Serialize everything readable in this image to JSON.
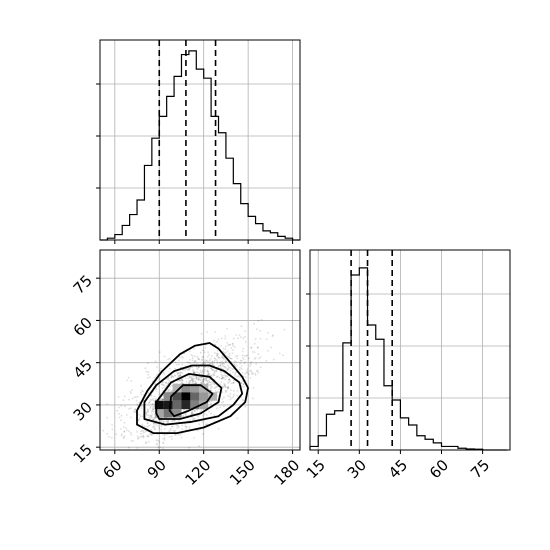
{
  "chart_data": {
    "type": "corner",
    "grid": true,
    "panels": [
      {
        "id": "hist_x",
        "type": "histogram",
        "orientation": "top-left",
        "xlim": [
          50,
          185
        ],
        "bin_edges": [
          50,
          55,
          60,
          65,
          70,
          75,
          80,
          85,
          90,
          95,
          100,
          105,
          110,
          115,
          120,
          125,
          130,
          135,
          140,
          145,
          150,
          155,
          160,
          165,
          170,
          175,
          180,
          185
        ],
        "counts": [
          0,
          1,
          3,
          8,
          14,
          22,
          41,
          56,
          68,
          79,
          90,
          102,
          104,
          94,
          89,
          68,
          59,
          45,
          31,
          20,
          13,
          9,
          5,
          4,
          2,
          1,
          0
        ],
        "quantile_lines": [
          90,
          108,
          128
        ],
        "ylim": [
          0,
          110
        ]
      },
      {
        "id": "hist_y",
        "type": "histogram",
        "orientation": "bottom-right",
        "xlim": [
          12,
          85
        ],
        "bin_edges": [
          12,
          15,
          18,
          21,
          24,
          27,
          30,
          33,
          36,
          39,
          42,
          45,
          48,
          51,
          54,
          57,
          60,
          63,
          66,
          69,
          72,
          75,
          78,
          81,
          84
        ],
        "counts": [
          1,
          4,
          10,
          11,
          30,
          49,
          51,
          35,
          31,
          18,
          14,
          9,
          7,
          4,
          3,
          2,
          1,
          1,
          0.5,
          0.3,
          0.2,
          0,
          0,
          0
        ],
        "quantile_lines": [
          27,
          33,
          42
        ],
        "ylim": [
          0,
          56
        ]
      },
      {
        "id": "joint",
        "type": "2d-density",
        "orientation": "bottom-left",
        "xlim": [
          50,
          185
        ],
        "ylim": [
          14,
          85
        ],
        "x_ticks": [
          60,
          90,
          120,
          150,
          180
        ],
        "y_ticks": [
          15,
          30,
          45,
          60,
          75
        ],
        "density_cells": [
          {
            "x": 90,
            "y": 27,
            "v": 0.35
          },
          {
            "x": 96,
            "y": 27,
            "v": 0.55
          },
          {
            "x": 102,
            "y": 27,
            "v": 0.45
          },
          {
            "x": 90,
            "y": 30,
            "v": 0.95
          },
          {
            "x": 96,
            "y": 30,
            "v": 0.9
          },
          {
            "x": 102,
            "y": 30,
            "v": 0.6
          },
          {
            "x": 108,
            "y": 30,
            "v": 0.85
          },
          {
            "x": 114,
            "y": 30,
            "v": 0.5
          },
          {
            "x": 120,
            "y": 30,
            "v": 0.35
          },
          {
            "x": 96,
            "y": 33,
            "v": 0.45
          },
          {
            "x": 102,
            "y": 33,
            "v": 0.7
          },
          {
            "x": 108,
            "y": 33,
            "v": 1.0
          },
          {
            "x": 114,
            "y": 33,
            "v": 0.6
          },
          {
            "x": 120,
            "y": 33,
            "v": 0.4
          },
          {
            "x": 126,
            "y": 33,
            "v": 0.3
          },
          {
            "x": 102,
            "y": 36,
            "v": 0.3
          },
          {
            "x": 108,
            "y": 36,
            "v": 0.45
          },
          {
            "x": 114,
            "y": 36,
            "v": 0.4
          },
          {
            "x": 120,
            "y": 36,
            "v": 0.3
          }
        ],
        "contours": [
          [
            [
              100,
              26
            ],
            [
              110,
              28
            ],
            [
              122,
              31
            ],
            [
              126,
              34
            ],
            [
              118,
              37
            ],
            [
              106,
              37
            ],
            [
              98,
              33
            ],
            [
              97,
              28
            ],
            [
              100,
              26
            ]
          ],
          [
            [
              90,
              25
            ],
            [
              104,
              25
            ],
            [
              118,
              27
            ],
            [
              130,
              31
            ],
            [
              132,
              36
            ],
            [
              124,
              40
            ],
            [
              110,
              41
            ],
            [
              98,
              38
            ],
            [
              88,
              31
            ],
            [
              88,
              27
            ],
            [
              90,
              25
            ]
          ],
          [
            [
              80,
              25
            ],
            [
              94,
              23
            ],
            [
              112,
              24
            ],
            [
              130,
              26
            ],
            [
              140,
              30
            ],
            [
              146,
              34
            ],
            [
              144,
              38
            ],
            [
              134,
              42
            ],
            [
              124,
              44
            ],
            [
              112,
              44
            ],
            [
              100,
              42
            ],
            [
              88,
              37
            ],
            [
              80,
              31
            ],
            [
              80,
              25
            ]
          ],
          [
            [
              75,
              23
            ],
            [
              86,
              20
            ],
            [
              102,
              20
            ],
            [
              120,
              22
            ],
            [
              138,
              26
            ],
            [
              148,
              31
            ],
            [
              150,
              36
            ],
            [
              146,
              40
            ],
            [
              138,
              45
            ],
            [
              130,
              50
            ],
            [
              124,
              52
            ],
            [
              114,
              51
            ],
            [
              104,
              48
            ],
            [
              92,
              42
            ],
            [
              82,
              35
            ],
            [
              75,
              28
            ],
            [
              75,
              23
            ]
          ]
        ]
      }
    ]
  }
}
